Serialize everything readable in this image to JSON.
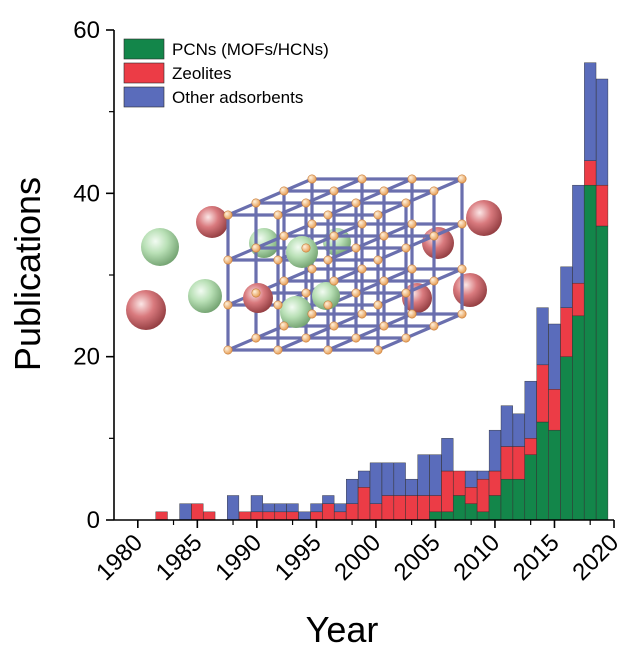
{
  "chart_data": {
    "type": "bar",
    "stacked": true,
    "xlabel": "Year",
    "ylabel": "Publications",
    "xlim": [
      1978,
      2020
    ],
    "ylim": [
      0,
      60
    ],
    "xticks": [
      "1980",
      "1985",
      "1990",
      "1995",
      "2000",
      "2005",
      "2010",
      "2015",
      "2020"
    ],
    "yticks": [
      "0",
      "20",
      "40",
      "60"
    ],
    "x": [
      1982,
      1984,
      1985,
      1986,
      1988,
      1989,
      1990,
      1991,
      1992,
      1993,
      1994,
      1995,
      1996,
      1997,
      1998,
      1999,
      2000,
      2001,
      2002,
      2003,
      2004,
      2005,
      2006,
      2007,
      2008,
      2009,
      2010,
      2011,
      2012,
      2013,
      2014,
      2015,
      2016,
      2017,
      2018,
      2019
    ],
    "series": [
      {
        "name": "PCNs (MOFs/HCNs)",
        "color": "#13864a",
        "values": [
          0,
          0,
          0,
          0,
          0,
          0,
          0,
          0,
          0,
          0,
          0,
          0,
          0,
          0,
          0,
          0,
          0,
          0,
          0,
          0,
          0,
          1,
          1,
          3,
          2,
          1,
          3,
          5,
          5,
          8,
          12,
          11,
          20,
          25,
          41,
          36
        ]
      },
      {
        "name": "Zeolites",
        "color": "#ec3c46",
        "values": [
          1,
          0,
          2,
          1,
          0,
          1,
          1,
          1,
          1,
          1,
          0,
          1,
          2,
          1,
          2,
          4,
          2,
          3,
          3,
          3,
          3,
          2,
          5,
          3,
          2,
          4,
          3,
          4,
          4,
          2,
          7,
          5,
          6,
          4,
          3,
          5
        ]
      },
      {
        "name": "Other adsorbents",
        "color": "#5a6cbb",
        "values": [
          0,
          2,
          0,
          0,
          3,
          0,
          2,
          1,
          1,
          1,
          1,
          1,
          1,
          1,
          3,
          2,
          5,
          4,
          4,
          2,
          5,
          5,
          4,
          0,
          2,
          1,
          5,
          5,
          4,
          7,
          7,
          8,
          5,
          12,
          12,
          13
        ]
      }
    ],
    "legend_position": "top-left",
    "grid": false,
    "inset_illustration": "porous-framework-lattice-with-spheres"
  }
}
